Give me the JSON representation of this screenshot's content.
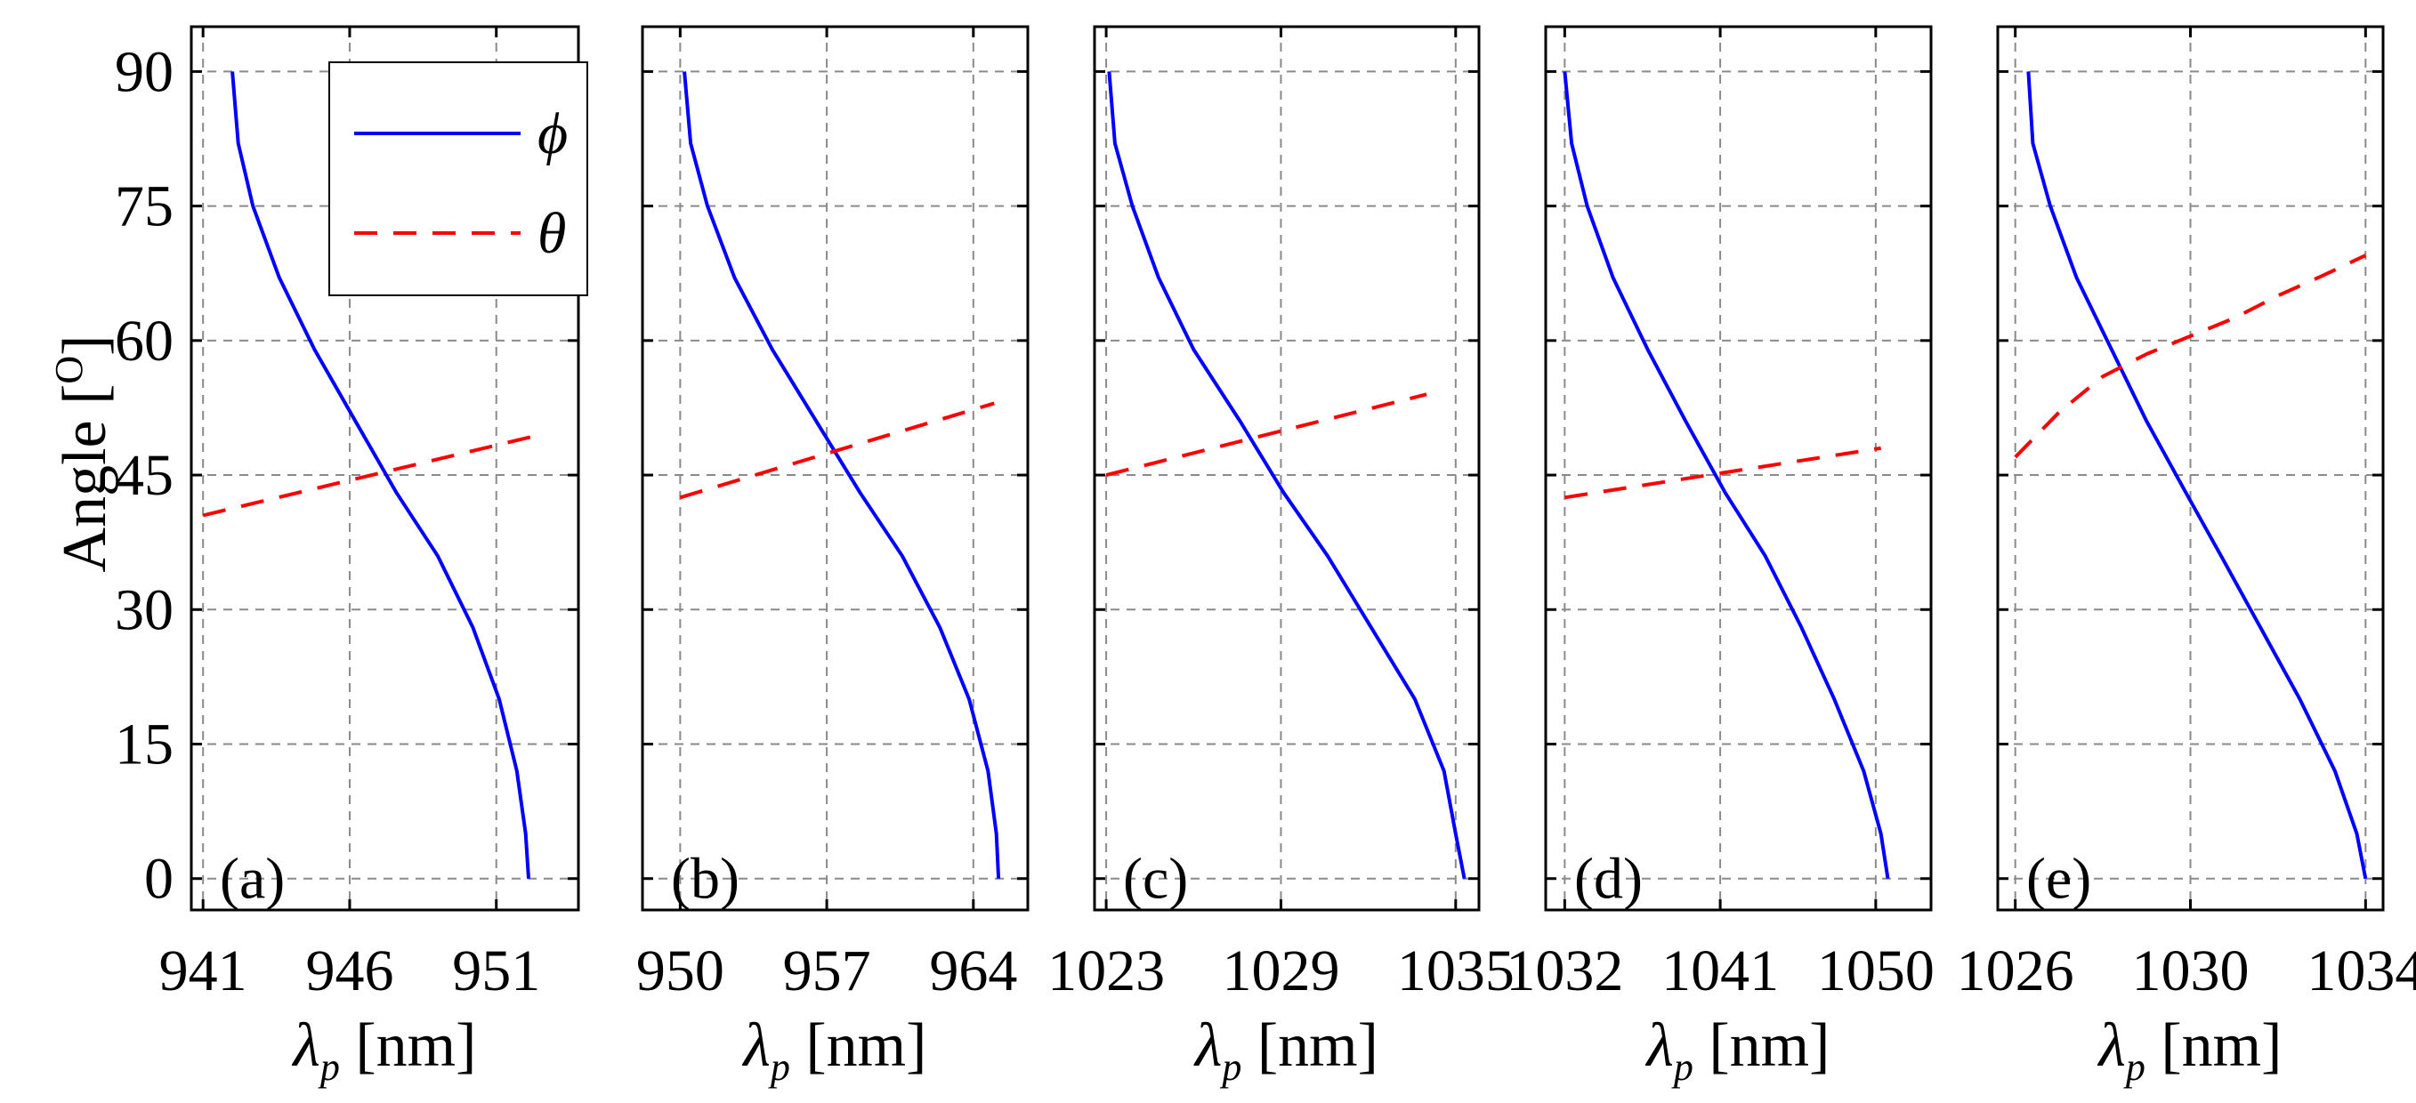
{
  "chart_data": [
    {
      "type": "line",
      "panel_label": "(a)",
      "xlim": [
        940.6,
        953.8
      ],
      "xticks": [
        941,
        946,
        951
      ],
      "xlabel_symbol": "λ",
      "xlabel_sub": "p",
      "xlabel_unit": " [nm]",
      "ylabel": "Angle [°]",
      "ylabel_main": "Angle [",
      "ylabel_sup": "O",
      "ylabel_close": "]",
      "ylim": [
        -3.5,
        95
      ],
      "yticks": [
        0,
        15,
        30,
        45,
        60,
        75,
        90
      ],
      "grid": true,
      "series": [
        {
          "name": "φ",
          "color": "#0000ff",
          "dash": "solid",
          "x": [
            942.0,
            942.2,
            942.7,
            943.6,
            944.8,
            946.2,
            947.6,
            949.0,
            950.2,
            951.1,
            951.7,
            952.0,
            952.1
          ],
          "y": [
            90,
            82,
            75,
            67,
            59,
            51,
            43,
            36,
            28,
            20,
            12,
            5,
            0
          ]
        },
        {
          "name": "θ",
          "color": "#ff0000",
          "dash": "dashed",
          "x": [
            941.0,
            952.5
          ],
          "y": [
            40.5,
            49.5
          ]
        }
      ]
    },
    {
      "type": "line",
      "panel_label": "(b)",
      "xlim": [
        948.2,
        966.6
      ],
      "xticks": [
        950,
        957,
        964
      ],
      "xlabel_symbol": "λ",
      "xlabel_sub": "p",
      "xlabel_unit": " [nm]",
      "ylim": [
        -3.5,
        95
      ],
      "yticks": [
        0,
        15,
        30,
        45,
        60,
        75,
        90
      ],
      "grid": true,
      "series": [
        {
          "name": "φ",
          "color": "#0000ff",
          "dash": "solid",
          "x": [
            950.2,
            950.5,
            951.3,
            952.6,
            954.4,
            956.5,
            958.6,
            960.6,
            962.4,
            963.8,
            964.7,
            965.1,
            965.2
          ],
          "y": [
            90,
            82,
            75,
            67,
            59,
            51,
            43,
            36,
            28,
            20,
            12,
            5,
            0
          ]
        },
        {
          "name": "θ",
          "color": "#ff0000",
          "dash": "dashed",
          "x": [
            950.0,
            965.0
          ],
          "y": [
            42.5,
            53.0
          ]
        }
      ]
    },
    {
      "type": "line",
      "panel_label": "(c)",
      "xlim": [
        1022.6,
        1035.8
      ],
      "xticks": [
        1023,
        1029,
        1035
      ],
      "xlabel_symbol": "λ",
      "xlabel_sub": "p",
      "xlabel_unit": " [nm]",
      "ylim": [
        -3.5,
        95
      ],
      "yticks": [
        0,
        15,
        30,
        45,
        60,
        75,
        90
      ],
      "grid": true,
      "series": [
        {
          "name": "φ",
          "color": "#0000ff",
          "dash": "solid",
          "x": [
            1023.1,
            1023.3,
            1023.9,
            1024.8,
            1026.0,
            1027.6,
            1029.1,
            1030.6,
            1032.1,
            1033.6,
            1034.6,
            1035.0,
            1035.3
          ],
          "y": [
            90,
            82,
            75,
            67,
            59,
            51,
            43,
            36,
            28,
            20,
            12,
            5,
            0
          ]
        },
        {
          "name": "θ",
          "color": "#ff0000",
          "dash": "dashed",
          "x": [
            1023.0,
            1034.0
          ],
          "y": [
            45.0,
            54.0
          ]
        }
      ]
    },
    {
      "type": "line",
      "panel_label": "(d)",
      "xlim": [
        1030.9,
        1053.2
      ],
      "xticks": [
        1032,
        1041,
        1050
      ],
      "xlabel_symbol": "λ",
      "xlabel_sub": "p",
      "xlabel_unit": " [nm]",
      "ylim": [
        -3.5,
        95
      ],
      "yticks": [
        0,
        15,
        30,
        45,
        60,
        75,
        90
      ],
      "grid": true,
      "series": [
        {
          "name": "φ",
          "color": "#0000ff",
          "dash": "solid",
          "x": [
            1032.0,
            1032.4,
            1033.3,
            1034.8,
            1036.8,
            1039.0,
            1041.3,
            1043.6,
            1045.7,
            1047.6,
            1049.3,
            1050.3,
            1050.7
          ],
          "y": [
            90,
            82,
            75,
            67,
            59,
            51,
            43,
            36,
            28,
            20,
            12,
            5,
            0
          ]
        },
        {
          "name": "θ",
          "color": "#ff0000",
          "dash": "dashed",
          "x": [
            1032.0,
            1050.3
          ],
          "y": [
            42.5,
            48.0
          ]
        }
      ]
    },
    {
      "type": "line",
      "panel_label": "(e)",
      "xlim": [
        1025.6,
        1034.4
      ],
      "xticks": [
        1026,
        1030,
        1034
      ],
      "xlabel_symbol": "λ",
      "xlabel_sub": "p",
      "xlabel_unit": " [nm]",
      "ylim": [
        -3.5,
        95
      ],
      "yticks": [
        0,
        15,
        30,
        45,
        60,
        75,
        90
      ],
      "grid": true,
      "series": [
        {
          "name": "φ",
          "color": "#0000ff",
          "dash": "solid",
          "x": [
            1026.3,
            1026.4,
            1026.8,
            1027.4,
            1028.2,
            1029.0,
            1029.9,
            1030.7,
            1031.6,
            1032.5,
            1033.3,
            1033.8,
            1034.0
          ],
          "y": [
            90,
            82,
            75,
            67,
            59,
            51,
            43,
            36,
            28,
            20,
            12,
            5,
            0
          ]
        },
        {
          "name": "θ",
          "color": "#ff0000",
          "dash": "dashed",
          "x": [
            1026.0,
            1027.0,
            1028.0,
            1029.0,
            1030.0,
            1031.0,
            1032.0,
            1033.0,
            1034.0
          ],
          "y": [
            47.0,
            52.0,
            56.0,
            58.5,
            60.5,
            62.5,
            65.0,
            67.2,
            69.5
          ]
        }
      ]
    }
  ],
  "legend": {
    "entries": [
      {
        "label": "ϕ",
        "color": "#0000ff",
        "dash": "solid"
      },
      {
        "label": "θ",
        "color": "#ff0000",
        "dash": "dashed"
      }
    ],
    "placement": "top-right of panel (a)"
  }
}
